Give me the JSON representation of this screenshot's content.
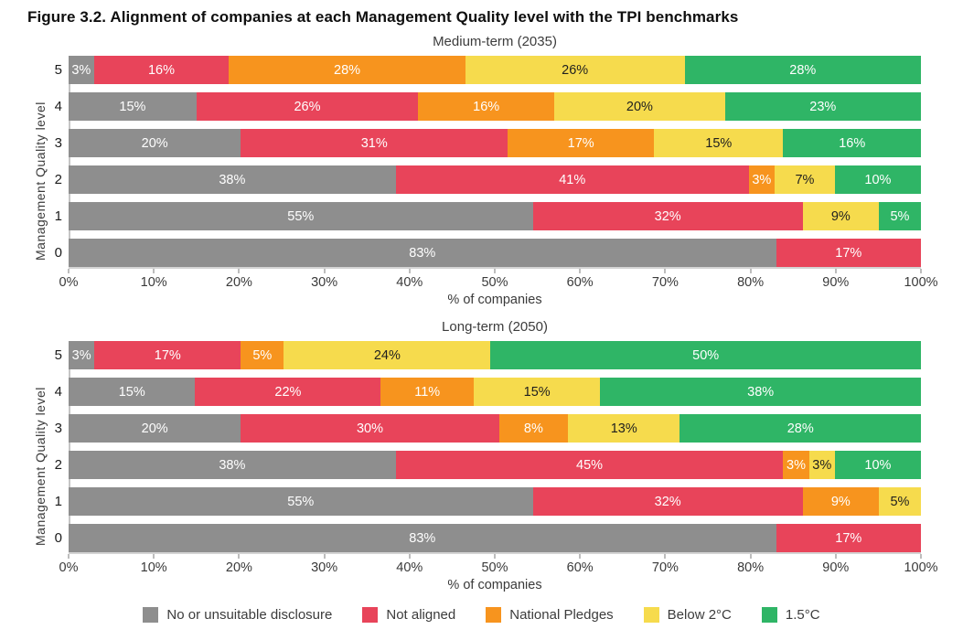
{
  "figure_title": "Figure 3.2. Alignment of companies at each Management Quality level with the TPI benchmarks",
  "legend": [
    {
      "label": "No or unsuitable disclosure",
      "color": "#8E8E8E",
      "text_color": "#ffffff"
    },
    {
      "label": "Not aligned",
      "color": "#E8445A",
      "text_color": "#ffffff"
    },
    {
      "label": "National Pledges",
      "color": "#F7941E",
      "text_color": "#ffffff"
    },
    {
      "label": "Below 2°C",
      "color": "#F6DB4D",
      "text_color": "#1f1f1f"
    },
    {
      "label": "1.5°C",
      "color": "#2FB566",
      "text_color": "#ffffff"
    }
  ],
  "chart_data": [
    {
      "type": "bar",
      "orientation": "horizontal",
      "stacked": true,
      "title": "Medium-term (2035)",
      "ylabel": "Management Quality level",
      "xlabel": "% of companies",
      "xlim": [
        0,
        100
      ],
      "x_ticks": [
        "0%",
        "10%",
        "20%",
        "30%",
        "40%",
        "50%",
        "60%",
        "70%",
        "80%",
        "90%",
        "100%"
      ],
      "categories": [
        "5",
        "4",
        "3",
        "2",
        "1",
        "0"
      ],
      "value_suffix": "%",
      "series": [
        {
          "name": "No or unsuitable disclosure",
          "values": [
            3,
            15,
            20,
            38,
            55,
            83
          ]
        },
        {
          "name": "Not aligned",
          "values": [
            16,
            26,
            31,
            41,
            32,
            17
          ]
        },
        {
          "name": "National Pledges",
          "values": [
            28,
            16,
            17,
            3,
            0,
            0
          ]
        },
        {
          "name": "Below 2°C",
          "values": [
            26,
            20,
            15,
            7,
            9,
            0
          ]
        },
        {
          "name": "1.5°C",
          "values": [
            28,
            23,
            16,
            10,
            5,
            0
          ]
        }
      ]
    },
    {
      "type": "bar",
      "orientation": "horizontal",
      "stacked": true,
      "title": "Long-term (2050)",
      "ylabel": "Management Quality level",
      "xlabel": "% of companies",
      "xlim": [
        0,
        100
      ],
      "x_ticks": [
        "0%",
        "10%",
        "20%",
        "30%",
        "40%",
        "50%",
        "60%",
        "70%",
        "80%",
        "90%",
        "100%"
      ],
      "categories": [
        "5",
        "4",
        "3",
        "2",
        "1",
        "0"
      ],
      "value_suffix": "%",
      "series": [
        {
          "name": "No or unsuitable disclosure",
          "values": [
            3,
            15,
            20,
            38,
            55,
            83
          ]
        },
        {
          "name": "Not aligned",
          "values": [
            17,
            22,
            30,
            45,
            32,
            17
          ]
        },
        {
          "name": "National Pledges",
          "values": [
            5,
            11,
            8,
            3,
            9,
            0
          ]
        },
        {
          "name": "Below 2°C",
          "values": [
            24,
            15,
            13,
            3,
            5,
            0
          ]
        },
        {
          "name": "1.5°C",
          "values": [
            50,
            38,
            28,
            10,
            0,
            0
          ]
        }
      ]
    }
  ]
}
